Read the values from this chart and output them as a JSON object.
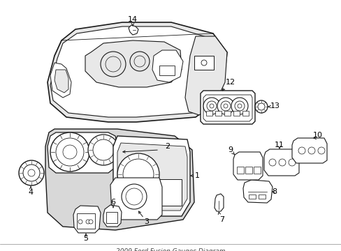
{
  "bg_color": "#ffffff",
  "line_color": "#1a1a1a",
  "label_color": "#000000",
  "fig_width": 4.89,
  "fig_height": 3.6,
  "dpi": 100,
  "gray_fill": "#d8d8d8",
  "light_gray": "#e8e8e8"
}
